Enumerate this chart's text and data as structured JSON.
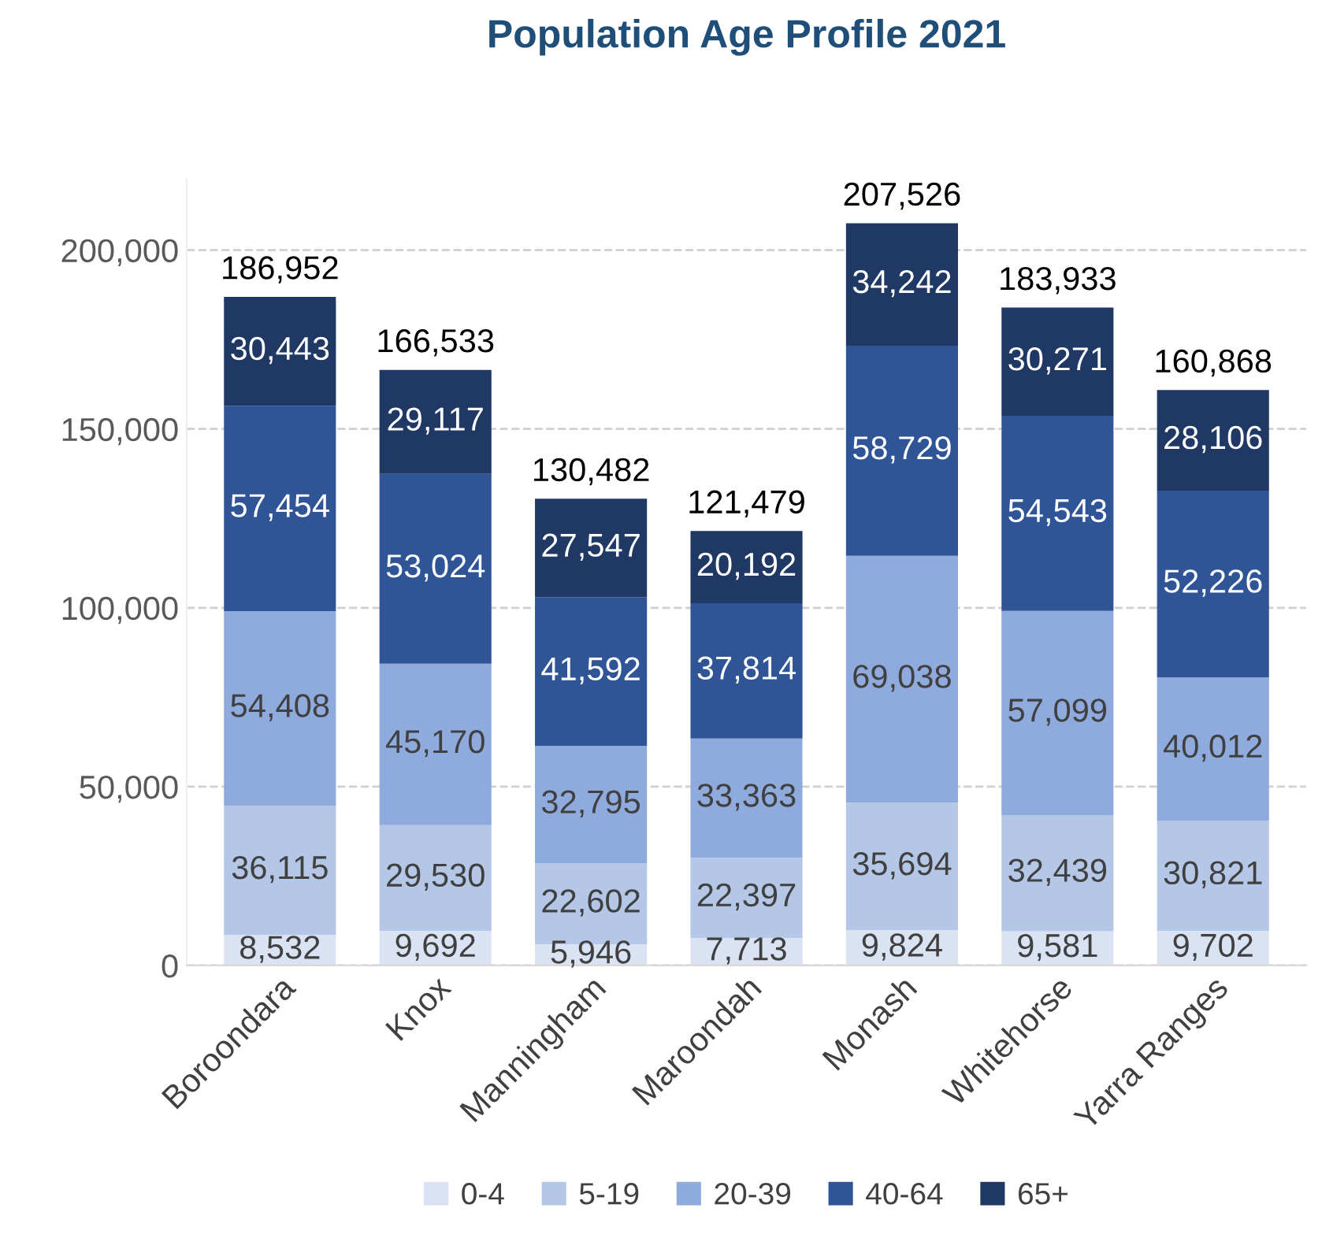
{
  "chart_data": {
    "type": "bar",
    "title": "Population Age Profile 2021",
    "stacked": true,
    "categories": [
      "Boroondara",
      "Knox",
      "Manningham",
      "Maroondah",
      "Monash",
      "Whitehorse",
      "Yarra Ranges"
    ],
    "series": [
      {
        "name": "0-4",
        "color": "#dae3f3",
        "values": [
          8532,
          9692,
          5946,
          7713,
          9824,
          9581,
          9702
        ],
        "value_labels": [
          "8,532",
          "9,692",
          "5,946",
          "7,713",
          "9,824",
          "9,581",
          "9,702"
        ]
      },
      {
        "name": "5-19",
        "color": "#b4c7e7",
        "values": [
          36115,
          29530,
          22602,
          22397,
          35694,
          32439,
          30821
        ],
        "value_labels": [
          "36,115",
          "29,530",
          "22,602",
          "22,397",
          "35,694",
          "32,439",
          "30,821"
        ]
      },
      {
        "name": "20-39",
        "color": "#8faadc",
        "values": [
          54408,
          45170,
          32795,
          33363,
          69038,
          57099,
          40012
        ],
        "value_labels": [
          "54,408",
          "45,170",
          "32,795",
          "33,363",
          "69,038",
          "57,099",
          "40,012"
        ]
      },
      {
        "name": "40-64",
        "color": "#2f5597",
        "values": [
          57454,
          53024,
          41592,
          37814,
          58729,
          54543,
          52226
        ],
        "value_labels": [
          "57,454",
          "53,024",
          "41,592",
          "37,814",
          "58,729",
          "54,543",
          "52,226"
        ]
      },
      {
        "name": "65+",
        "color": "#203864",
        "values": [
          30443,
          29117,
          27547,
          20192,
          34242,
          30271,
          28106
        ],
        "value_labels": [
          "30,443",
          "29,117",
          "27,547",
          "20,192",
          "34,242",
          "30,271",
          "28,106"
        ]
      }
    ],
    "totals": [
      "186,952",
      "166,533",
      "130,482",
      "121,479",
      "207,526",
      "183,933",
      "160,868"
    ],
    "ylim": [
      0,
      220000
    ],
    "yticks": [
      {
        "value": 0,
        "label": "0"
      },
      {
        "value": 50000,
        "label": "50,000"
      },
      {
        "value": 100000,
        "label": "100,000"
      },
      {
        "value": 150000,
        "label": "150,000"
      },
      {
        "value": 200000,
        "label": "200,000"
      }
    ],
    "grid": "y",
    "legend": "bottom"
  }
}
